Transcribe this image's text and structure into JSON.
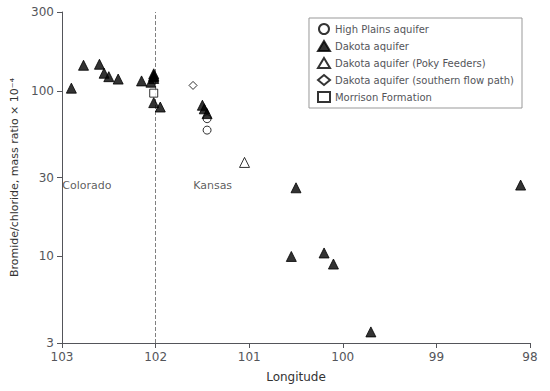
{
  "chart_data": {
    "type": "scatter",
    "xlabel": "Longitude",
    "ylabel": "Bromide/chloride, mass ratio × 10⁻⁴",
    "xlim": [
      103,
      98
    ],
    "ylim": [
      3,
      300
    ],
    "xticks": [
      103,
      102,
      101,
      100,
      99,
      98
    ],
    "yticks": [
      3,
      10,
      30,
      100,
      300
    ],
    "log": "y",
    "grid": false,
    "legend": "upper right",
    "reference_lines": [
      {
        "x": 102,
        "line_style": "dashed",
        "color": "gray"
      }
    ],
    "annotations": [
      {
        "text": "Colorado",
        "x": 102.45,
        "y": 27
      },
      {
        "text": "Kansas",
        "x": 101.62,
        "y": 27
      }
    ],
    "series": [
      {
        "name": "High Plains aquifer",
        "marker": "circle-open",
        "color": "#000000",
        "x": [
          101.45,
          101.45
        ],
        "values": [
          68,
          58
        ]
      },
      {
        "name": "Dakota aquifer",
        "marker": "triangle",
        "color": "#000000",
        "x": [
          102.9,
          102.77,
          102.6,
          102.55,
          102.5,
          102.4,
          102.15,
          102.05,
          102.02,
          102.02,
          102.02,
          102.02,
          102.02,
          101.95,
          101.5,
          101.48,
          101.45,
          100.55,
          100.5,
          100.2,
          100.1,
          99.7,
          98.1
        ],
        "values": [
          104,
          143,
          145,
          128,
          122,
          118,
          115,
          113,
          127,
          124,
          122,
          119,
          85,
          80,
          82,
          78,
          73,
          10,
          26,
          10.5,
          9,
          3.5,
          27
        ]
      },
      {
        "name": "Dakota aquifer (Poky Feeders)",
        "marker": "triangle-open",
        "color": "#000000",
        "x": [
          101.05
        ],
        "values": [
          37
        ]
      },
      {
        "name": "Dakota aquifer (southern flow path)",
        "marker": "diamond-open",
        "color": "#000000",
        "x": [
          101.6
        ],
        "values": [
          108
        ]
      },
      {
        "name": "Morrison Formation",
        "marker": "square-open",
        "color": "#000000",
        "x": [
          102.02
        ],
        "values": [
          97
        ]
      }
    ]
  }
}
